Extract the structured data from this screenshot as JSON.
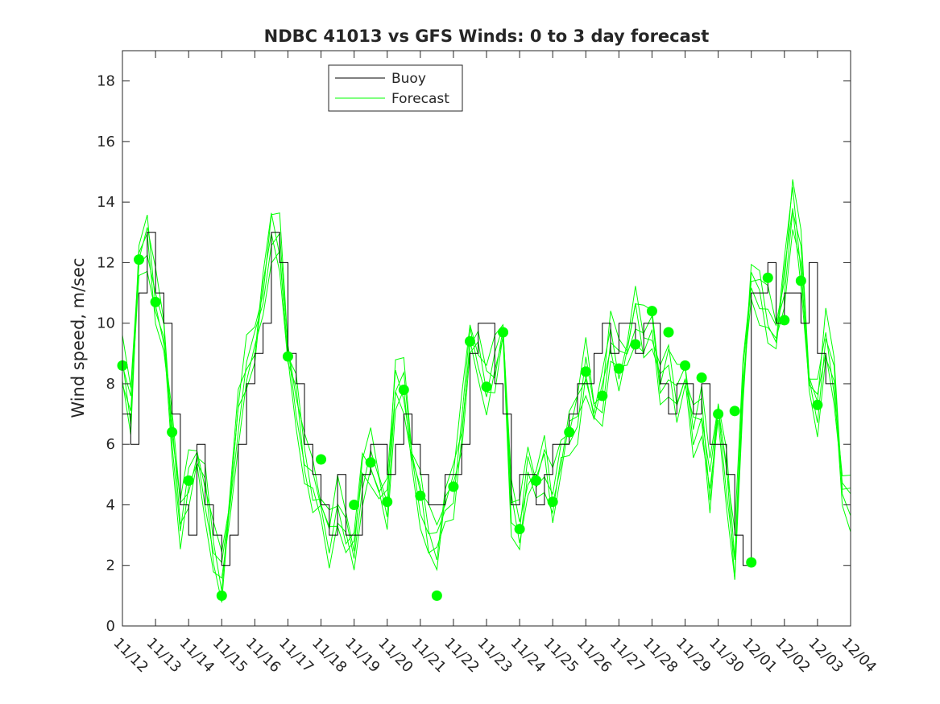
{
  "chart_data": {
    "type": "line",
    "title": "NDBC 41013 vs GFS Winds: 0 to 3 day forecast",
    "xlabel": "",
    "ylabel": "Wind speed, m/sec",
    "ylim": [
      0,
      19
    ],
    "xlim_days": [
      0,
      22
    ],
    "x_ticks": [
      "11/12",
      "11/13",
      "11/14",
      "11/15",
      "11/16",
      "11/17",
      "11/18",
      "11/19",
      "11/20",
      "11/21",
      "11/22",
      "11/23",
      "11/24",
      "11/25",
      "11/26",
      "11/27",
      "11/28",
      "11/29",
      "11/30",
      "12/01",
      "12/02",
      "12/03",
      "12/04"
    ],
    "y_ticks": [
      0,
      2,
      4,
      6,
      8,
      10,
      12,
      14,
      16,
      18
    ],
    "legend": {
      "position": "top-left-center",
      "entries": [
        "Buoy",
        "Forecast"
      ]
    },
    "colors": {
      "buoy": "#000000",
      "forecast": "#00ff00",
      "axes": "#262626",
      "analysis_dots": "#00ff00"
    },
    "series": [
      {
        "name": "Buoy",
        "x": [
          0,
          0.25,
          0.5,
          0.75,
          1.0,
          1.25,
          1.5,
          1.75,
          2.0,
          2.25,
          2.5,
          2.75,
          3.0,
          3.25,
          3.5,
          3.75,
          4.0,
          4.25,
          4.5,
          4.75,
          5.0,
          5.25,
          5.5,
          5.75,
          6.0,
          6.25,
          6.5,
          6.75,
          7.0,
          7.25,
          7.5,
          7.75,
          8.0,
          8.25,
          8.5,
          8.75,
          9.0,
          9.25,
          9.5,
          9.75,
          10.0,
          10.25,
          10.5,
          10.75,
          11.0,
          11.25,
          11.5,
          11.75,
          12.0,
          12.25,
          12.5,
          12.75,
          13.0,
          13.25,
          13.5,
          13.75,
          14.0,
          14.25,
          14.5,
          14.75,
          15.0,
          15.25,
          15.5,
          15.75,
          16.0,
          16.25,
          16.5,
          16.75,
          17.0,
          17.25,
          17.5,
          17.75,
          18.0,
          18.25,
          18.5,
          18.75,
          19.0,
          19.25,
          19.5,
          19.75,
          20.0,
          20.25,
          20.5,
          20.75,
          21.0,
          21.25,
          21.5
        ],
        "values": [
          7,
          6,
          11,
          13,
          11,
          10,
          7,
          4,
          3,
          6,
          4,
          3,
          2,
          3,
          6,
          8,
          9,
          10,
          13,
          12,
          9,
          8,
          6,
          5,
          4,
          3,
          5,
          3,
          3,
          5,
          6,
          6,
          5,
          6,
          7,
          6,
          5,
          4,
          4,
          5,
          5,
          6,
          9,
          10,
          10,
          8,
          7,
          4,
          5,
          5,
          4,
          5,
          6,
          6,
          7,
          8,
          8,
          9,
          10,
          9,
          10,
          10,
          9,
          10,
          10,
          8,
          7,
          8,
          8,
          7,
          8,
          6,
          6,
          5,
          3,
          2,
          11,
          11,
          12,
          10,
          11,
          11,
          10,
          12,
          9,
          8,
          8
        ]
      },
      {
        "name": "Forecast",
        "x": [
          0,
          0.25,
          0.5,
          0.75,
          1.0,
          1.25,
          1.5,
          1.75,
          2.0,
          2.25,
          2.5,
          2.75,
          3.0,
          3.25,
          3.5,
          3.75,
          4.0,
          4.25,
          4.5,
          4.75,
          5.0,
          5.25,
          5.5,
          5.75,
          6.0,
          6.25,
          6.5,
          6.75,
          7.0,
          7.25,
          7.5,
          7.75,
          8.0,
          8.25,
          8.5,
          8.75,
          9.0,
          9.25,
          9.5,
          9.75,
          10.0,
          10.25,
          10.5,
          10.75,
          11.0,
          11.25,
          11.5,
          11.75,
          12.0,
          12.25,
          12.5,
          12.75,
          13.0,
          13.25,
          13.5,
          13.75,
          14.0,
          14.25,
          14.5,
          14.75,
          15.0,
          15.25,
          15.5,
          15.75,
          16.0,
          16.25,
          16.5,
          16.75,
          17.0,
          17.25,
          17.5,
          17.75,
          18.0,
          18.25,
          18.5,
          18.75,
          19.0,
          19.25,
          19.5,
          19.75,
          20.0,
          20.25,
          20.5,
          20.75,
          21.0,
          21.25,
          21.5,
          21.75,
          22.0
        ],
        "values": [
          8.6,
          7,
          12.1,
          12.8,
          10.7,
          9.5,
          6.4,
          3.5,
          4.7,
          5.5,
          4.5,
          2.5,
          1.5,
          4,
          7,
          8.5,
          9.2,
          11,
          13,
          12.5,
          8.9,
          7.5,
          5.5,
          4.5,
          3.9,
          3,
          3.9,
          3,
          2.5,
          5,
          5.4,
          4.5,
          4.1,
          8,
          7.8,
          5.5,
          4.3,
          3,
          2.5,
          4,
          4.6,
          6.5,
          9.4,
          9,
          7.9,
          8.5,
          9.7,
          4,
          3.2,
          5,
          4.7,
          5.5,
          4.1,
          5.5,
          6.4,
          7,
          8.4,
          7,
          7.6,
          9.5,
          8.5,
          9,
          10.4,
          9.5,
          9.7,
          8,
          8.6,
          7.5,
          8.2,
          6.5,
          7.1,
          4.5,
          7.1,
          5,
          2.1,
          8,
          11.4,
          11,
          10.1,
          9.5,
          11.4,
          14,
          12,
          8,
          7.3,
          9.5,
          8,
          4.5,
          4.2
        ]
      }
    ],
    "analysis_points": {
      "x": [
        0,
        0.5,
        1.0,
        1.5,
        2.0,
        3.0,
        5.0,
        6.0,
        7.0,
        7.5,
        8.0,
        8.5,
        9.0,
        9.5,
        10.0,
        10.5,
        11.0,
        11.5,
        12.0,
        12.5,
        13.0,
        13.5,
        14.0,
        14.5,
        15.0,
        15.5,
        16.0,
        16.5,
        17.0,
        17.5,
        18.0,
        18.5,
        19.0,
        19.5,
        20.0,
        20.5,
        21.0
      ],
      "values": [
        8.6,
        12.1,
        10.7,
        6.4,
        4.8,
        1.0,
        8.9,
        5.5,
        4.0,
        5.4,
        4.1,
        7.8,
        4.3,
        1.0,
        4.6,
        9.4,
        7.9,
        9.7,
        3.2,
        4.8,
        4.1,
        6.4,
        8.4,
        7.6,
        8.5,
        9.3,
        10.4,
        9.7,
        8.6,
        8.2,
        7.0,
        7.1,
        2.1,
        11.5,
        10.1,
        11.4,
        7.3
      ]
    }
  }
}
